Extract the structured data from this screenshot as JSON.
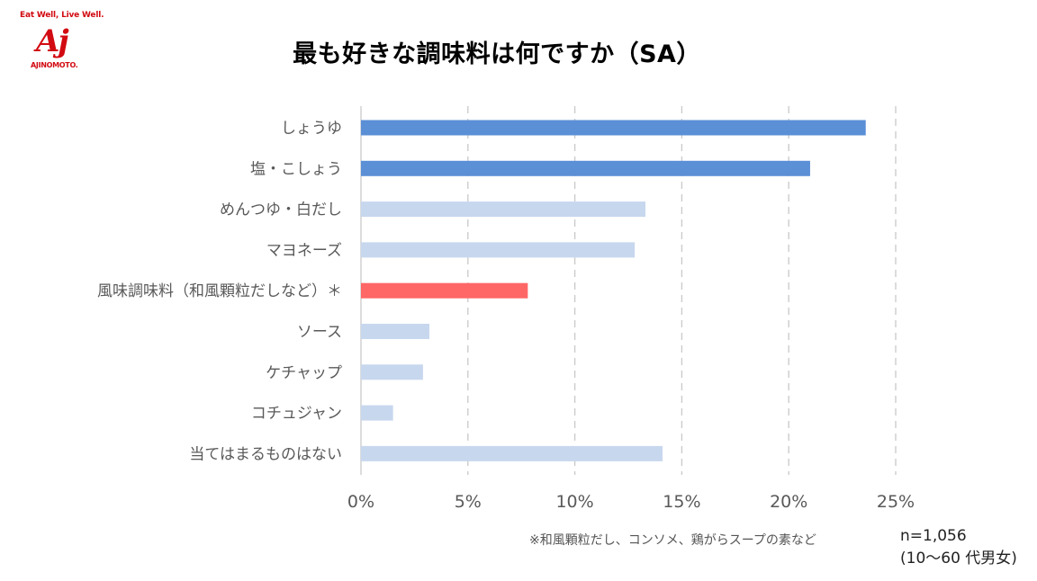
{
  "logo": {
    "tagline": "Eat Well, Live Well.",
    "mark": "Aj",
    "brand": "AJINOMOTO."
  },
  "title": "最も好きな調味料は何ですか（SA）",
  "colors": {
    "highlight": "#5b8fd6",
    "standard": "#c7d7ee",
    "accent": "#ff6666",
    "grid": "#c9c9c9",
    "axis_text": "#595959"
  },
  "chart_data": {
    "type": "bar",
    "orientation": "horizontal",
    "title": "最も好きな調味料は何ですか（SA）",
    "categories": [
      "しょうゆ",
      "塩・こしょう",
      "めんつゆ・白だし",
      "マヨネーズ",
      "風味調味料（和風顆粒だしなど）＊",
      "ソース",
      "ケチャップ",
      "コチュジャン",
      "当てはまるものはない"
    ],
    "values": [
      23.6,
      21.0,
      13.3,
      12.8,
      7.8,
      3.2,
      2.9,
      1.5,
      14.1
    ],
    "bar_styles": [
      "highlight",
      "highlight",
      "standard",
      "standard",
      "accent",
      "standard",
      "standard",
      "standard",
      "standard"
    ],
    "xlim": [
      0,
      25
    ],
    "xticks": [
      0,
      5,
      10,
      15,
      20,
      25
    ],
    "xtick_labels": [
      "0%",
      "5%",
      "10%",
      "15%",
      "20%",
      "25%"
    ],
    "grid": "vertical dashed"
  },
  "footnote": "※和風顆粒だし、コンソメ、鶏がらスープの素など",
  "sample": {
    "n": "n=1,056",
    "group": "(10～60 代男女)"
  }
}
